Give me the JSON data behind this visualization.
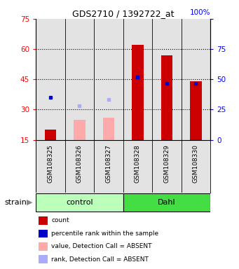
{
  "title": "GDS2710 / 1392722_at",
  "samples": [
    "GSM108325",
    "GSM108326",
    "GSM108327",
    "GSM108328",
    "GSM108329",
    "GSM108330"
  ],
  "groups": [
    "control",
    "control",
    "control",
    "Dahl",
    "Dahl",
    "Dahl"
  ],
  "ylim_left": [
    15,
    75
  ],
  "ylim_right": [
    0,
    100
  ],
  "yticks_left": [
    15,
    30,
    45,
    60,
    75
  ],
  "yticks_right": [
    0,
    25,
    50,
    75,
    100
  ],
  "bar_values": [
    20,
    null,
    null,
    62,
    57,
    44
  ],
  "bar_values_absent": [
    null,
    25,
    26,
    null,
    null,
    null
  ],
  "dot_values": [
    36,
    null,
    null,
    46,
    43,
    43
  ],
  "dot_values_absent": [
    null,
    32,
    35,
    null,
    null,
    null
  ],
  "bar_color_present": "#cc0000",
  "bar_color_absent": "#ffaaaa",
  "dot_color_present": "#0000cc",
  "dot_color_absent": "#aaaaff",
  "group_colors": {
    "control": "#bbffbb",
    "Dahl": "#44dd44"
  },
  "background_color": "#ffffff",
  "bar_width": 0.4,
  "legend_items": [
    {
      "label": "count",
      "color": "#cc0000"
    },
    {
      "label": "percentile rank within the sample",
      "color": "#0000cc"
    },
    {
      "label": "value, Detection Call = ABSENT",
      "color": "#ffaaaa"
    },
    {
      "label": "rank, Detection Call = ABSENT",
      "color": "#aaaaff"
    }
  ]
}
